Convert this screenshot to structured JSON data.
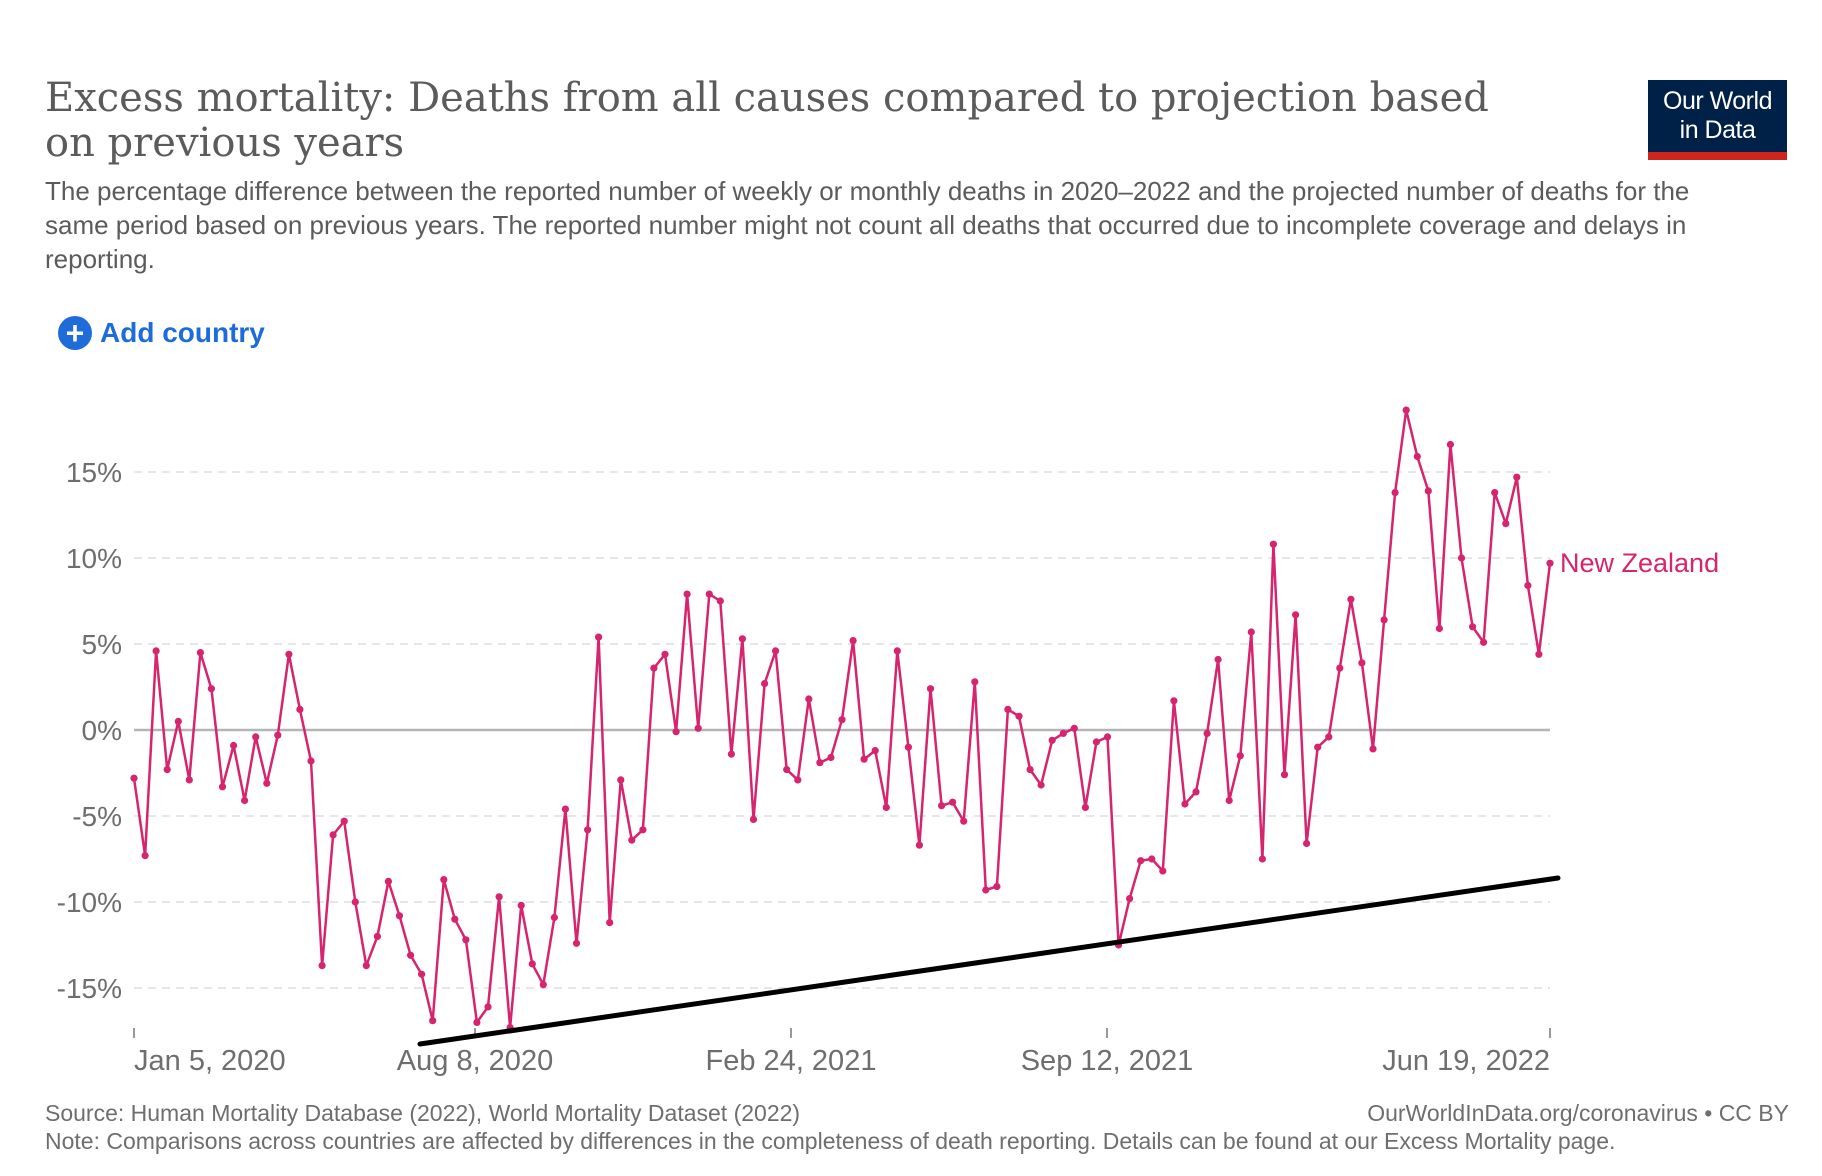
{
  "header": {
    "title": "Excess mortality: Deaths from all causes compared to projection based on previous years",
    "subtitle": "The percentage difference between the reported number of weekly or monthly deaths in 2020–2022 and the projected number of deaths for the same period based on previous years. The reported number might not count all deaths that occurred due to incomplete coverage and delays in reporting.",
    "logo_line1": "Our World",
    "logo_line2": "in Data"
  },
  "controls": {
    "add_country_label": "Add country",
    "add_icon": "plus-circle-icon"
  },
  "colors": {
    "series": "#d6246e",
    "trendline": "#000000",
    "logo_bg": "#002147",
    "logo_bar": "#ce261e",
    "accent": "#1d6cd9"
  },
  "chart_data": {
    "type": "line",
    "title": "",
    "xlabel": "",
    "ylabel": "",
    "ylim": [
      -18,
      19
    ],
    "y_ticks": [
      "15%",
      "10%",
      "5%",
      "0%",
      "-5%",
      "-10%",
      "-15%"
    ],
    "y_tick_values": [
      15,
      10,
      5,
      0,
      -5,
      -10,
      -15
    ],
    "x_ticks": [
      "Jan 5, 2020",
      "Aug 8, 2020",
      "Feb 24, 2021",
      "Sep 12, 2021",
      "Jun 19, 2022"
    ],
    "grid": true,
    "legend": "end-of-line label",
    "series": [
      {
        "name": "New Zealand",
        "values": [
          -2.8,
          -7.3,
          4.6,
          -2.3,
          0.5,
          -2.9,
          4.5,
          2.4,
          -3.3,
          -0.9,
          -4.1,
          -0.4,
          -3.1,
          -0.3,
          4.4,
          1.2,
          -1.8,
          -13.7,
          -6.1,
          -5.3,
          -10.0,
          -13.7,
          -12.0,
          -8.8,
          -10.8,
          -13.1,
          -14.2,
          -16.9,
          -8.7,
          -11.0,
          -12.2,
          -17.0,
          -16.1,
          -9.7,
          -17.3,
          -10.2,
          -13.6,
          -14.8,
          -10.9,
          -4.6,
          -12.4,
          -5.8,
          5.4,
          -11.2,
          -2.9,
          -6.4,
          -5.8,
          3.6,
          4.4,
          -0.1,
          7.9,
          0.1,
          7.9,
          7.5,
          -1.4,
          5.3,
          -5.2,
          2.7,
          4.6,
          -2.3,
          -2.9,
          1.8,
          -1.9,
          -1.6,
          0.6,
          5.2,
          -1.7,
          -1.2,
          -4.5,
          4.6,
          -1.0,
          -6.7,
          2.4,
          -4.4,
          -4.2,
          -5.3,
          2.8,
          -9.3,
          -9.1,
          1.2,
          0.8,
          -2.3,
          -3.2,
          -0.6,
          -0.2,
          0.1,
          -4.5,
          -0.7,
          -0.4,
          -12.5,
          -9.8,
          -7.6,
          -7.5,
          -8.2,
          1.7,
          -4.3,
          -3.6,
          -0.2,
          4.1,
          -4.1,
          -1.5,
          5.7,
          -7.5,
          10.8,
          -2.6,
          6.7,
          -6.6,
          -1.0,
          -0.4,
          3.6,
          7.6,
          3.9,
          -1.1,
          6.4,
          13.8,
          18.6,
          15.9,
          13.9,
          5.9,
          16.6,
          10.0,
          6.0,
          5.1,
          13.8,
          12.0,
          14.7,
          8.4,
          4.4,
          9.7
        ]
      }
    ],
    "annotation": "Hand-drawn black trend line running below the series from Aug 2020 toward Jun 2022"
  },
  "footer": {
    "source": "Source: Human Mortality Database (2022), World Mortality Dataset (2022)",
    "url": "OurWorldInData.org/coronavirus • CC BY",
    "note": "Note: Comparisons across countries are affected by differences in the completeness of death reporting. Details can be found at our Excess Mortality page."
  }
}
